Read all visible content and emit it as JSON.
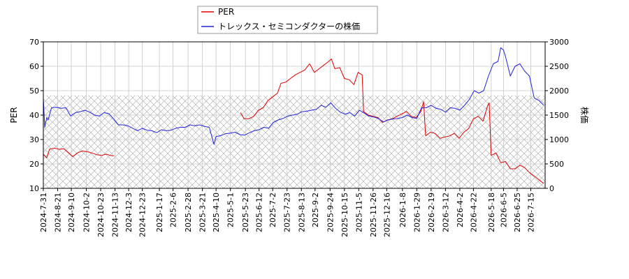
{
  "chart_data": {
    "type": "line",
    "title": "",
    "legend": {
      "placement": "top-center",
      "entries": [
        {
          "name": "PER",
          "color": "#dd0000"
        },
        {
          "name": "トレックス・セミコンダクターの株価",
          "color": "#2222dd"
        }
      ]
    },
    "left_axis": {
      "label": "PER",
      "ylim": [
        10,
        70
      ],
      "ticks": [
        10,
        20,
        30,
        40,
        50,
        60,
        70
      ]
    },
    "right_axis": {
      "label": "株価",
      "ylim": [
        0,
        3000
      ],
      "ticks": [
        0,
        500,
        1000,
        1500,
        2000,
        2500,
        3000
      ]
    },
    "xlim": [
      "2024-07-31",
      "2026-08-05"
    ],
    "x_ticks": [
      "2024-7-31",
      "2024-8-21",
      "2024-9-10",
      "2024-10-2",
      "2024-10-23",
      "2024-11-13",
      "2024-12-3",
      "2024-12-23",
      "2025-1-17",
      "2025-2-6",
      "2025-2-28",
      "2025-3-21",
      "2025-4-10",
      "2025-5-1",
      "2025-5-23",
      "2025-6-12",
      "2025-7-2",
      "2025-7-23",
      "2025-8-13",
      "2025-9-2",
      "2025-9-24",
      "2025-10-15",
      "2025-11-5",
      "2025-11-26",
      "2025-12-16",
      "2026-1-8",
      "2026-1-29",
      "2026-2-19",
      "2026-3-12",
      "2026-4-2",
      "2026-4-22",
      "2026-5-18",
      "2026-6-5",
      "2026-6-25",
      "2026-7-15"
    ],
    "grid": true,
    "shaded_band": {
      "axis": "left",
      "from": 10,
      "to": 48,
      "pattern": "crosshatch"
    },
    "series": [
      {
        "name": "PER",
        "axis": "left",
        "color": "#dd0000",
        "segments": [
          [
            [
              "2024-07-31",
              24.0
            ],
            [
              "2024-08-05",
              22.5
            ],
            [
              "2024-08-09",
              26.0
            ],
            [
              "2024-08-16",
              26.5
            ],
            [
              "2024-08-23",
              26.0
            ],
            [
              "2024-08-30",
              26.2
            ],
            [
              "2024-09-06",
              24.5
            ],
            [
              "2024-09-12",
              23.0
            ],
            [
              "2024-09-19",
              24.5
            ],
            [
              "2024-09-26",
              25.3
            ],
            [
              "2024-10-03",
              25.0
            ],
            [
              "2024-10-10",
              24.5
            ],
            [
              "2024-10-17",
              23.8
            ],
            [
              "2024-10-24",
              23.5
            ],
            [
              "2024-10-31",
              24.0
            ],
            [
              "2024-11-06",
              23.5
            ],
            [
              "2024-11-11",
              23.2
            ]
          ],
          [
            [
              "2025-05-16",
              41.0
            ],
            [
              "2025-05-21",
              38.5
            ],
            [
              "2025-05-28",
              38.5
            ],
            [
              "2025-06-04",
              39.5
            ],
            [
              "2025-06-11",
              42.0
            ],
            [
              "2025-06-18",
              43.0
            ],
            [
              "2025-06-25",
              46.0
            ],
            [
              "2025-07-02",
              47.5
            ],
            [
              "2025-07-09",
              49.0
            ],
            [
              "2025-07-14",
              53.0
            ],
            [
              "2025-07-21",
              53.5
            ],
            [
              "2025-07-28",
              55.0
            ],
            [
              "2025-08-04",
              56.5
            ],
            [
              "2025-08-11",
              57.5
            ],
            [
              "2025-08-18",
              58.5
            ],
            [
              "2025-08-25",
              61.0
            ],
            [
              "2025-09-01",
              57.5
            ],
            [
              "2025-09-08",
              59.0
            ],
            [
              "2025-09-15",
              60.5
            ],
            [
              "2025-09-22",
              62.0
            ],
            [
              "2025-09-26",
              63.0
            ],
            [
              "2025-10-01",
              59.0
            ],
            [
              "2025-10-08",
              59.5
            ],
            [
              "2025-10-15",
              55.0
            ],
            [
              "2025-10-22",
              54.5
            ],
            [
              "2025-10-29",
              52.5
            ],
            [
              "2025-11-04",
              57.5
            ],
            [
              "2025-11-10",
              56.5
            ],
            [
              "2025-11-12",
              41.5
            ],
            [
              "2025-11-19",
              40.0
            ],
            [
              "2025-11-26",
              39.5
            ],
            [
              "2025-12-03",
              39.0
            ],
            [
              "2025-12-10",
              37.0
            ],
            [
              "2025-12-17",
              38.0
            ],
            [
              "2025-12-24",
              38.5
            ],
            [
              "2025-12-31",
              39.5
            ],
            [
              "2026-01-07",
              40.5
            ],
            [
              "2026-01-14",
              41.5
            ],
            [
              "2026-01-21",
              39.5
            ],
            [
              "2026-01-28",
              39.0
            ],
            [
              "2026-02-04",
              41.5
            ],
            [
              "2026-02-08",
              45.5
            ],
            [
              "2026-02-11",
              31.5
            ],
            [
              "2026-02-18",
              33.0
            ],
            [
              "2026-02-25",
              32.5
            ],
            [
              "2026-03-04",
              30.5
            ],
            [
              "2026-03-11",
              31.0
            ],
            [
              "2026-03-18",
              31.5
            ],
            [
              "2026-03-25",
              32.5
            ],
            [
              "2026-04-01",
              30.5
            ],
            [
              "2026-04-08",
              33.0
            ],
            [
              "2026-04-15",
              34.5
            ],
            [
              "2026-04-22",
              38.5
            ],
            [
              "2026-04-29",
              39.5
            ],
            [
              "2026-05-06",
              37.5
            ],
            [
              "2026-05-13",
              44.0
            ],
            [
              "2026-05-15",
              45.0
            ],
            [
              "2026-05-18",
              23.5
            ],
            [
              "2026-05-25",
              24.5
            ],
            [
              "2026-06-01",
              20.5
            ],
            [
              "2026-06-08",
              21.0
            ],
            [
              "2026-06-15",
              18.0
            ],
            [
              "2026-06-22",
              18.0
            ],
            [
              "2026-06-29",
              19.5
            ],
            [
              "2026-07-06",
              18.5
            ],
            [
              "2026-07-13",
              16.5
            ],
            [
              "2026-07-20",
              15.0
            ],
            [
              "2026-07-27",
              13.5
            ],
            [
              "2026-08-03",
              12.0
            ]
          ]
        ]
      },
      {
        "name": "トレックス・セミコンダクターの株価",
        "axis": "right",
        "color": "#2222dd",
        "segments": [
          [
            [
              "2024-07-31",
              1850
            ],
            [
              "2024-08-02",
              1250
            ],
            [
              "2024-08-05",
              1450
            ],
            [
              "2024-08-07",
              1400
            ],
            [
              "2024-08-12",
              1650
            ],
            [
              "2024-08-19",
              1660
            ],
            [
              "2024-08-26",
              1640
            ],
            [
              "2024-09-02",
              1650
            ],
            [
              "2024-09-09",
              1480
            ],
            [
              "2024-09-16",
              1550
            ],
            [
              "2024-09-23",
              1570
            ],
            [
              "2024-09-30",
              1600
            ],
            [
              "2024-10-07",
              1560
            ],
            [
              "2024-10-14",
              1500
            ],
            [
              "2024-10-21",
              1480
            ],
            [
              "2024-10-28",
              1550
            ],
            [
              "2024-11-04",
              1530
            ],
            [
              "2024-11-11",
              1420
            ],
            [
              "2024-11-18",
              1300
            ],
            [
              "2024-11-25",
              1300
            ],
            [
              "2024-12-02",
              1280
            ],
            [
              "2024-12-09",
              1230
            ],
            [
              "2024-12-16",
              1180
            ],
            [
              "2024-12-23",
              1230
            ],
            [
              "2024-12-30",
              1190
            ],
            [
              "2025-01-06",
              1180
            ],
            [
              "2025-01-13",
              1140
            ],
            [
              "2025-01-20",
              1200
            ],
            [
              "2025-01-27",
              1180
            ],
            [
              "2025-02-03",
              1190
            ],
            [
              "2025-02-10",
              1230
            ],
            [
              "2025-02-17",
              1250
            ],
            [
              "2025-02-24",
              1250
            ],
            [
              "2025-03-03",
              1300
            ],
            [
              "2025-03-10",
              1280
            ],
            [
              "2025-03-17",
              1300
            ],
            [
              "2025-03-24",
              1270
            ],
            [
              "2025-03-31",
              1250
            ],
            [
              "2025-04-04",
              1050
            ],
            [
              "2025-04-07",
              900
            ],
            [
              "2025-04-10",
              1060
            ],
            [
              "2025-04-17",
              1080
            ],
            [
              "2025-04-24",
              1120
            ],
            [
              "2025-05-01",
              1130
            ],
            [
              "2025-05-08",
              1150
            ],
            [
              "2025-05-15",
              1100
            ],
            [
              "2025-05-22",
              1090
            ],
            [
              "2025-05-29",
              1140
            ],
            [
              "2025-06-05",
              1180
            ],
            [
              "2025-06-12",
              1200
            ],
            [
              "2025-06-19",
              1250
            ],
            [
              "2025-06-26",
              1230
            ],
            [
              "2025-07-03",
              1350
            ],
            [
              "2025-07-10",
              1400
            ],
            [
              "2025-07-17",
              1430
            ],
            [
              "2025-07-24",
              1480
            ],
            [
              "2025-07-31",
              1500
            ],
            [
              "2025-08-07",
              1520
            ],
            [
              "2025-08-14",
              1570
            ],
            [
              "2025-08-21",
              1580
            ],
            [
              "2025-08-28",
              1600
            ],
            [
              "2025-09-04",
              1620
            ],
            [
              "2025-09-11",
              1700
            ],
            [
              "2025-09-18",
              1660
            ],
            [
              "2025-09-25",
              1750
            ],
            [
              "2025-10-02",
              1640
            ],
            [
              "2025-10-09",
              1560
            ],
            [
              "2025-10-16",
              1520
            ],
            [
              "2025-10-23",
              1550
            ],
            [
              "2025-10-30",
              1480
            ],
            [
              "2025-11-06",
              1600
            ],
            [
              "2025-11-13",
              1540
            ],
            [
              "2025-11-20",
              1480
            ],
            [
              "2025-11-27",
              1460
            ],
            [
              "2025-12-04",
              1430
            ],
            [
              "2025-12-11",
              1360
            ],
            [
              "2025-12-18",
              1400
            ],
            [
              "2025-12-25",
              1420
            ],
            [
              "2026-01-01",
              1430
            ],
            [
              "2026-01-08",
              1450
            ],
            [
              "2026-01-15",
              1500
            ],
            [
              "2026-01-22",
              1450
            ],
            [
              "2026-01-29",
              1430
            ],
            [
              "2026-02-05",
              1650
            ],
            [
              "2026-02-12",
              1650
            ],
            [
              "2026-02-19",
              1700
            ],
            [
              "2026-02-26",
              1640
            ],
            [
              "2026-03-05",
              1620
            ],
            [
              "2026-03-12",
              1560
            ],
            [
              "2026-03-19",
              1650
            ],
            [
              "2026-03-26",
              1640
            ],
            [
              "2026-04-02",
              1600
            ],
            [
              "2026-04-09",
              1700
            ],
            [
              "2026-04-16",
              1820
            ],
            [
              "2026-04-23",
              2000
            ],
            [
              "2026-04-30",
              1950
            ],
            [
              "2026-05-07",
              2000
            ],
            [
              "2026-05-14",
              2300
            ],
            [
              "2026-05-21",
              2550
            ],
            [
              "2026-05-28",
              2600
            ],
            [
              "2026-06-01",
              2880
            ],
            [
              "2026-06-05",
              2830
            ],
            [
              "2026-06-08",
              2700
            ],
            [
              "2026-06-15",
              2300
            ],
            [
              "2026-06-22",
              2500
            ],
            [
              "2026-06-29",
              2550
            ],
            [
              "2026-07-06",
              2400
            ],
            [
              "2026-07-13",
              2300
            ],
            [
              "2026-07-20",
              1850
            ],
            [
              "2026-07-27",
              1800
            ],
            [
              "2026-08-03",
              1700
            ]
          ]
        ]
      }
    ]
  }
}
